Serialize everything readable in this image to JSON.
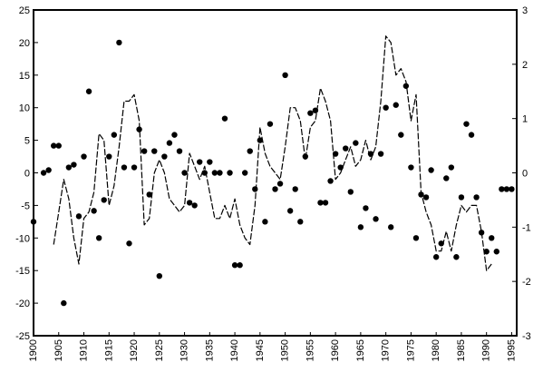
{
  "chart_data": {
    "type": "line",
    "x_ticks": [
      1900,
      1905,
      1910,
      1915,
      1920,
      1925,
      1930,
      1935,
      1940,
      1945,
      1950,
      1955,
      1960,
      1965,
      1970,
      1975,
      1980,
      1985,
      1990,
      1995
    ],
    "xlim": [
      1900,
      1996
    ],
    "y_left": {
      "ylim": [
        -25,
        25
      ],
      "ticks": [
        25,
        20,
        15,
        10,
        5,
        0,
        -5,
        -10,
        -15,
        -20,
        -25
      ]
    },
    "y_right": {
      "ylim": [
        -3,
        3
      ],
      "ticks": [
        3,
        2,
        1,
        0,
        -1,
        -2,
        -3
      ]
    },
    "grid": false,
    "series": [
      {
        "axis": "left",
        "style": "dashed-line",
        "color": "#000000",
        "x": [
          1904,
          1905,
          1906,
          1907,
          1908,
          1909,
          1910,
          1911,
          1912,
          1913,
          1914,
          1915,
          1916,
          1917,
          1918,
          1919,
          1920,
          1921,
          1922,
          1923,
          1924,
          1925,
          1926,
          1927,
          1928,
          1929,
          1930,
          1931,
          1932,
          1933,
          1934,
          1935,
          1936,
          1937,
          1938,
          1939,
          1940,
          1941,
          1942,
          1943,
          1944,
          1945,
          1946,
          1947,
          1948,
          1949,
          1950,
          1951,
          1952,
          1953,
          1954,
          1955,
          1956,
          1957,
          1958,
          1959,
          1960,
          1961,
          1962,
          1963,
          1964,
          1965,
          1966,
          1967,
          1968,
          1969,
          1970,
          1971,
          1972,
          1973,
          1974,
          1975,
          1976,
          1977,
          1978,
          1979,
          1980,
          1981,
          1982,
          1983,
          1984,
          1985,
          1986,
          1987,
          1988,
          1989,
          1990,
          1991
        ],
        "y": [
          -11,
          -6,
          -1,
          -4,
          -10,
          -14,
          -7,
          -6,
          -3,
          6,
          5,
          -5,
          -2,
          4,
          11,
          11,
          12,
          8,
          -8,
          -7,
          0,
          2,
          0,
          -4,
          -5,
          -6,
          -5,
          3,
          1,
          -1,
          1,
          -3,
          -7,
          -7,
          -5,
          -7,
          -4,
          -8,
          -10,
          -11,
          -5,
          7,
          3,
          1,
          0,
          -1,
          4,
          10,
          10,
          8,
          2,
          7,
          8,
          13,
          11,
          8,
          -1,
          0,
          2,
          4,
          1,
          2,
          5,
          2,
          4,
          11,
          21,
          20,
          15,
          16,
          14,
          8,
          12,
          -3,
          -6,
          -8,
          -12,
          -12,
          -9,
          -12,
          -8,
          -5,
          -6,
          -5,
          -5,
          -9,
          -15,
          -14
        ]
      },
      {
        "axis": "right",
        "style": "dots",
        "color": "#000000",
        "x": [
          1900,
          1902,
          1903,
          1904,
          1905,
          1906,
          1907,
          1908,
          1909,
          1910,
          1911,
          1912,
          1913,
          1914,
          1915,
          1916,
          1917,
          1918,
          1919,
          1920,
          1921,
          1922,
          1923,
          1924,
          1925,
          1926,
          1927,
          1928,
          1929,
          1930,
          1931,
          1932,
          1933,
          1934,
          1935,
          1936,
          1937,
          1938,
          1939,
          1940,
          1941,
          1942,
          1943,
          1944,
          1945,
          1946,
          1947,
          1948,
          1949,
          1950,
          1951,
          1952,
          1953,
          1954,
          1955,
          1956,
          1957,
          1958,
          1959,
          1960,
          1961,
          1962,
          1963,
          1964,
          1965,
          1966,
          1967,
          1968,
          1969,
          1970,
          1971,
          1972,
          1973,
          1974,
          1975,
          1976,
          1977,
          1978,
          1979,
          1980,
          1981,
          1982,
          1983,
          1984,
          1985,
          1986,
          1987,
          1988,
          1989,
          1990,
          1991,
          1992,
          1993,
          1994,
          1995
        ],
        "y": [
          -0.9,
          0.0,
          0.05,
          0.5,
          0.5,
          -2.4,
          0.1,
          0.15,
          -0.8,
          0.3,
          1.5,
          -0.7,
          -1.2,
          -0.5,
          0.3,
          0.7,
          2.4,
          0.1,
          -1.3,
          0.1,
          0.8,
          0.4,
          -0.4,
          0.4,
          -1.9,
          0.3,
          0.55,
          0.7,
          0.4,
          0.0,
          -0.55,
          -0.6,
          0.2,
          0.0,
          0.2,
          0.0,
          0.0,
          1.0,
          0.0,
          -1.7,
          -1.7,
          0.0,
          0.4,
          -0.3,
          0.6,
          -0.9,
          0.9,
          -0.3,
          -0.2,
          1.8,
          -0.7,
          -0.3,
          -0.9,
          0.3,
          1.1,
          1.15,
          -0.55,
          -0.55,
          -0.15,
          0.35,
          0.1,
          0.45,
          -0.35,
          0.55,
          -1.0,
          -0.65,
          0.35,
          -0.85,
          0.35,
          1.2,
          -1.0,
          1.25,
          0.7,
          1.6,
          0.1,
          -1.2,
          -0.4,
          -0.45,
          0.05,
          -1.55,
          -1.3,
          -0.1,
          0.1,
          -1.55,
          -0.45,
          0.9,
          0.7,
          -0.45,
          -1.1,
          -1.45,
          -1.2,
          -1.45,
          -0.3,
          -0.3,
          -0.3
        ]
      }
    ]
  }
}
